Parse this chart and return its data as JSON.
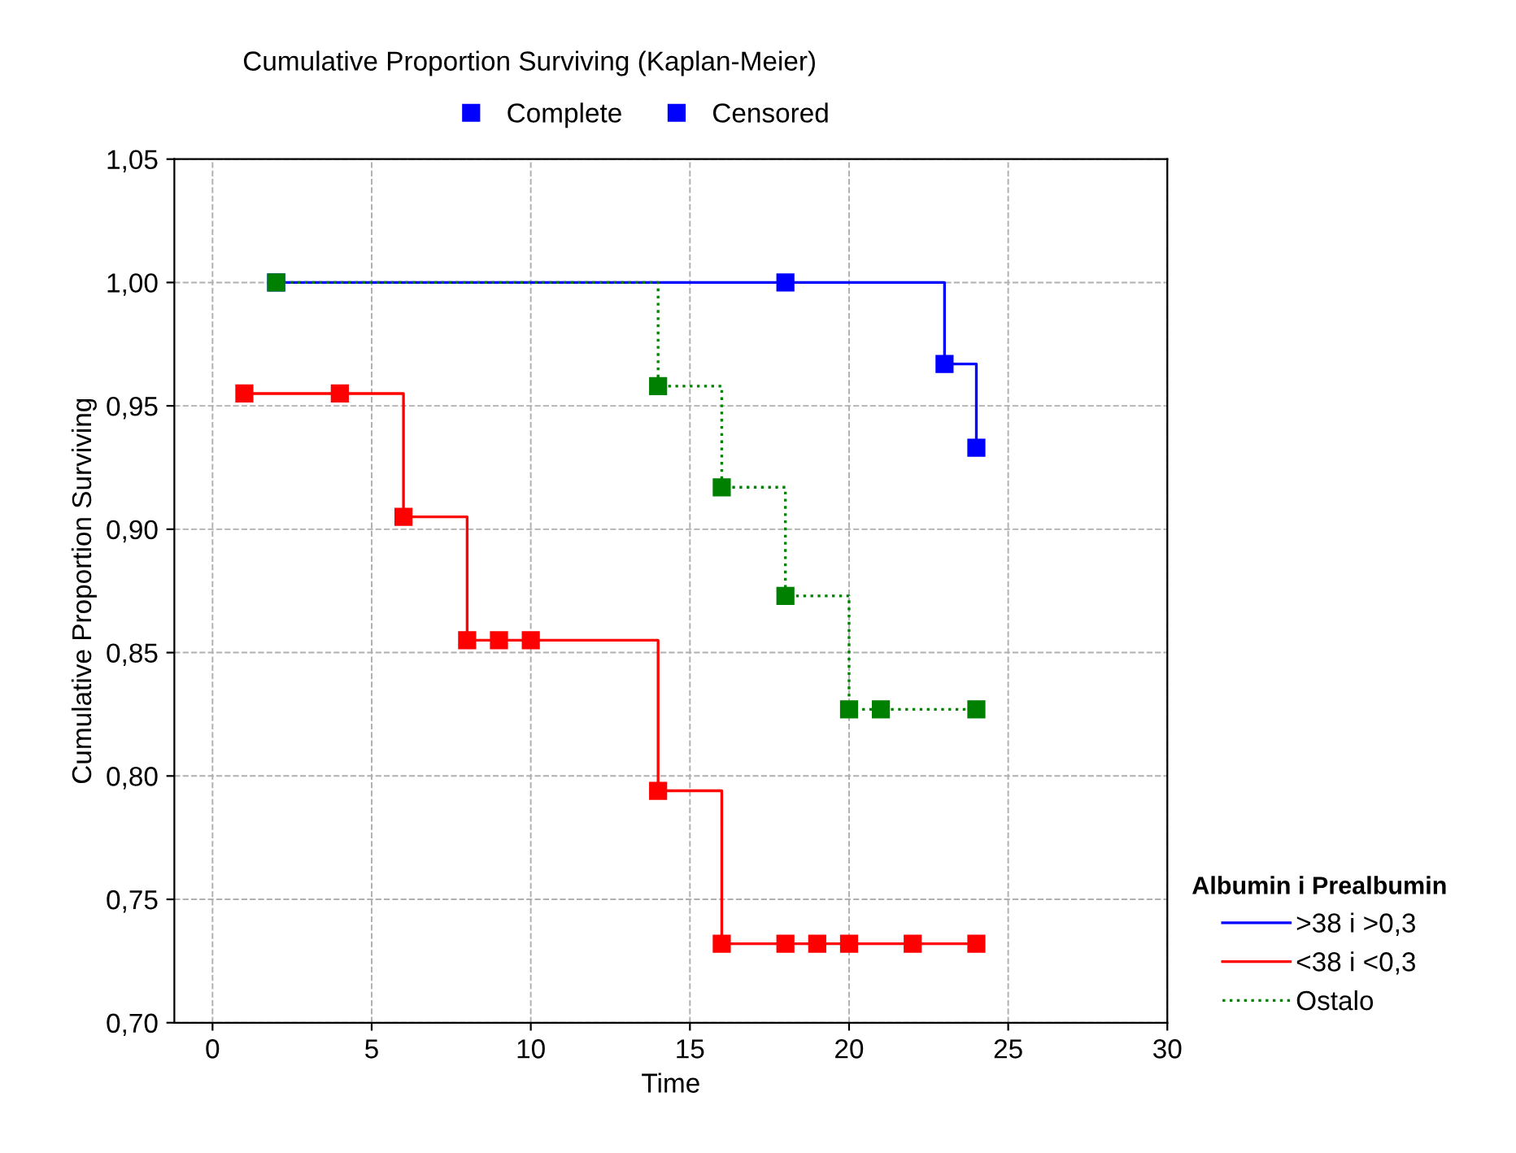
{
  "chart_data": {
    "type": "step",
    "title": "Cumulative Proportion Surviving (Kaplan-Meier)",
    "xlabel": "Time",
    "ylabel": "Cumulative Proportion Surviving",
    "legend_title": "Albumin i Prealbumin",
    "annotations": [
      "Complete",
      "Censored"
    ],
    "series": [
      {
        "name": ">38 i >0,3",
        "color": "#0000ff",
        "line_style": "solid",
        "x": [
          2,
          18,
          23,
          24
        ],
        "values": [
          1.0,
          1.0,
          0.967,
          0.933
        ]
      },
      {
        "name": "<38 i <0,3",
        "color": "#ff0000",
        "line_style": "solid",
        "x": [
          1,
          4,
          6,
          8,
          9,
          10,
          14,
          16,
          18,
          19,
          20,
          22,
          24
        ],
        "values": [
          0.955,
          0.955,
          0.905,
          0.855,
          0.855,
          0.855,
          0.794,
          0.732,
          0.732,
          0.732,
          0.732,
          0.732,
          0.732
        ]
      },
      {
        "name": "Ostalo",
        "color": "#008000",
        "line_style": "dotted",
        "x": [
          2,
          14,
          16,
          18,
          20,
          21,
          24
        ],
        "values": [
          1.0,
          0.958,
          0.917,
          0.873,
          0.827,
          0.827,
          0.827
        ]
      }
    ],
    "xlim": [
      -1.2,
      30
    ],
    "xticks": [
      0,
      5,
      10,
      15,
      20,
      25,
      30
    ],
    "ylim": [
      0.7,
      1.05
    ],
    "yticks": [
      {
        "value": 0.7,
        "label": "0,70"
      },
      {
        "value": 0.75,
        "label": "0,75"
      },
      {
        "value": 0.8,
        "label": "0,80"
      },
      {
        "value": 0.85,
        "label": "0,85"
      },
      {
        "value": 0.9,
        "label": "0,90"
      },
      {
        "value": 0.95,
        "label": "0,95"
      },
      {
        "value": 1.0,
        "label": "1,00"
      },
      {
        "value": 1.05,
        "label": "1,05"
      }
    ],
    "grid": true,
    "legend": "bottom right",
    "marker": "square"
  }
}
